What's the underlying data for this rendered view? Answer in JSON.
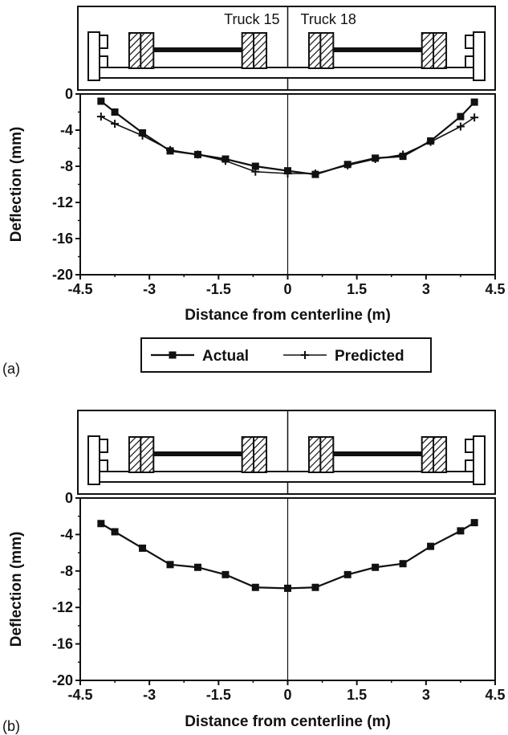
{
  "chart_data": [
    {
      "panel_label": "(a)",
      "type": "line",
      "xlabel": "Distance from centerline (m)",
      "ylabel": "Deflection (mm)",
      "xlim": [
        -4.5,
        4.5
      ],
      "ylim": [
        -20,
        0
      ],
      "x_ticks": [
        -4.5,
        -3,
        -1.5,
        0,
        1.5,
        3,
        4.5
      ],
      "x_tick_labels": [
        "-4.5",
        "-3",
        "-1.5",
        "0",
        "1.5",
        "3",
        "4.5"
      ],
      "y_ticks": [
        0,
        -4,
        -8,
        -12,
        -16,
        -20
      ],
      "y_tick_labels": [
        "0",
        "-4",
        "-8",
        "-12",
        "-16",
        "-20"
      ],
      "grid": false,
      "truck_labels": [
        "Truck 15",
        "Truck 18"
      ],
      "legend_position": "below-plot",
      "series": [
        {
          "name": "Actual",
          "marker": "square",
          "x": [
            -4.05,
            -3.75,
            -3.15,
            -2.55,
            -1.95,
            -1.35,
            -0.7,
            0,
            0.6,
            1.3,
            1.9,
            2.5,
            3.1,
            3.75,
            4.05
          ],
          "y": [
            -0.8,
            -2.0,
            -4.3,
            -6.3,
            -6.7,
            -7.2,
            -8.0,
            -8.5,
            -8.9,
            -7.8,
            -7.1,
            -6.9,
            -5.2,
            -2.5,
            -0.9
          ]
        },
        {
          "name": "Predicted",
          "marker": "plus",
          "x": [
            -4.05,
            -3.75,
            -3.15,
            -2.55,
            -1.95,
            -1.35,
            -0.7,
            0,
            0.6,
            1.3,
            1.9,
            2.5,
            3.1,
            3.75,
            4.05
          ],
          "y": [
            -2.5,
            -3.3,
            -4.6,
            -6.2,
            -6.7,
            -7.4,
            -8.6,
            -8.8,
            -8.8,
            -7.9,
            -7.2,
            -6.7,
            -5.3,
            -3.6,
            -2.6
          ]
        }
      ]
    },
    {
      "panel_label": "(b)",
      "type": "line",
      "xlabel": "Distance from centerline (m)",
      "ylabel": "Deflection (mm)",
      "xlim": [
        -4.5,
        4.5
      ],
      "ylim": [
        -20,
        0
      ],
      "x_ticks": [
        -4.5,
        -3,
        -1.5,
        0,
        1.5,
        3,
        4.5
      ],
      "x_tick_labels": [
        "-4.5",
        "-3",
        "-1.5",
        "0",
        "1.5",
        "3",
        "4.5"
      ],
      "y_ticks": [
        0,
        -4,
        -8,
        -12,
        -16,
        -20
      ],
      "y_tick_labels": [
        "0",
        "-4",
        "-8",
        "-12",
        "-16",
        "-20"
      ],
      "grid": false,
      "truck_labels": [],
      "series": [
        {
          "marker": "square",
          "x": [
            -4.05,
            -3.75,
            -3.15,
            -2.55,
            -1.95,
            -1.35,
            -0.7,
            0,
            0.6,
            1.3,
            1.9,
            2.5,
            3.1,
            3.75,
            4.05
          ],
          "y": [
            -2.8,
            -3.7,
            -5.5,
            -7.3,
            -7.6,
            -8.4,
            -9.8,
            -9.9,
            -9.8,
            -8.4,
            -7.6,
            -7.2,
            -5.3,
            -3.6,
            -2.7
          ]
        }
      ]
    }
  ],
  "colors": {
    "ink": "#111111",
    "background": "#ffffff",
    "hatch": "#111111"
  },
  "icons": [
    "bridge-cross-section-icon",
    "truck-wheel-icon",
    "barrier-icon"
  ]
}
